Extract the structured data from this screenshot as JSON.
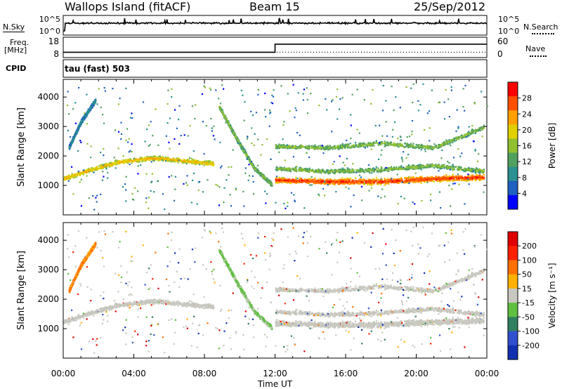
{
  "header": {
    "station": "Wallops Island (fitACF)",
    "beam": "Beam 15",
    "date": "25/Sep/2012"
  },
  "side_labels": {
    "nsky": "N.Sky",
    "nsearch": "N.Search",
    "freq_top": "Freq.",
    "freq_unit": "[MHz]",
    "nave": "Nave",
    "cpid": "CPID"
  },
  "colors": {
    "trace": "#000000",
    "velocity_ground": "#c8c8c0"
  },
  "chart_data": [
    {
      "type": "line",
      "name": "noise-panel",
      "left_ticks": [
        "10^5",
        "10^0"
      ],
      "right_ticks": [
        "10^5",
        "10^0"
      ],
      "series": [
        {
          "name": "N.Sky",
          "style": "solid"
        },
        {
          "name": "N.Search",
          "style": "dotted"
        }
      ]
    },
    {
      "type": "line",
      "name": "frequency-panel",
      "left_ticks": [
        "18",
        "8"
      ],
      "right_ticks": [
        "60",
        "0"
      ],
      "ylim_left": [
        8,
        18
      ],
      "ylim_right": [
        0,
        60
      ],
      "series": [
        {
          "name": "Freq.",
          "x": [
            0,
            12,
            12,
            24
          ],
          "y": [
            10,
            10,
            15,
            15
          ]
        },
        {
          "name": "Nave",
          "x": [
            0,
            24
          ],
          "y": [
            12,
            12
          ]
        }
      ]
    },
    {
      "type": "table",
      "name": "cpid-panel",
      "annotation": "tau (fast) 503"
    },
    {
      "type": "heatmap",
      "name": "power-panel",
      "ylabel": "Slant Range [km]",
      "yticks": [
        "1000",
        "2000",
        "3000",
        "4000"
      ],
      "ylim": [
        0,
        4600
      ],
      "xlim": [
        0,
        24
      ],
      "colorbar": {
        "label": "Power [dB]",
        "ticks": [
          "28",
          "24",
          "20",
          "16",
          "12",
          "8",
          "4"
        ],
        "range": [
          0,
          30
        ],
        "colors": [
          "#0000ff",
          "#2060c0",
          "#2a9090",
          "#50a060",
          "#90c030",
          "#e0d000",
          "#ffa000",
          "#ff5000",
          "#ff0000"
        ]
      },
      "bands": [
        {
          "x": [
            0.0,
            1.5,
            3.0,
            5.0,
            7.0,
            8.5
          ],
          "y": [
            1250,
            1550,
            1800,
            1950,
            1850,
            1750
          ],
          "power": 20
        },
        {
          "x": [
            0.3,
            1.0,
            1.8
          ],
          "y": [
            2300,
            3200,
            3900
          ],
          "power": 8
        },
        {
          "x": [
            8.8,
            9.8,
            10.8,
            11.8
          ],
          "y": [
            3700,
            2600,
            1600,
            1050
          ],
          "power": 14
        },
        {
          "x": [
            12.0,
            15.0,
            18.0,
            21.0,
            23.8
          ],
          "y": [
            1200,
            1150,
            1150,
            1250,
            1300
          ],
          "power": 26
        },
        {
          "x": [
            12.0,
            15.0,
            18.0,
            21.0,
            23.8
          ],
          "y": [
            1600,
            1500,
            1550,
            1700,
            1500
          ],
          "power": 14
        },
        {
          "x": [
            12.0,
            15.0,
            18.0,
            21.0,
            23.8
          ],
          "y": [
            2350,
            2300,
            2450,
            2300,
            3000
          ],
          "power": 14
        }
      ]
    },
    {
      "type": "heatmap",
      "name": "velocity-panel",
      "ylabel": "Slant Range [km]",
      "yticks": [
        "1000",
        "2000",
        "3000",
        "4000"
      ],
      "ylim": [
        0,
        4600
      ],
      "xlim": [
        0,
        24
      ],
      "xlabel": "Time UT",
      "xticks": [
        "00:00",
        "04:00",
        "08:00",
        "12:00",
        "16:00",
        "20:00",
        "00:00"
      ],
      "colorbar": {
        "label": "Velocity [m s⁻¹]",
        "ticks": [
          "200",
          "100",
          "50",
          "15",
          "-15",
          "-50",
          "-100",
          "-200"
        ],
        "colors": [
          "#1030b0",
          "#3050d0",
          "#308060",
          "#60c040",
          "#c8c8c0",
          "#ffb000",
          "#ff7000",
          "#ff2000",
          "#e00000"
        ]
      }
    }
  ]
}
